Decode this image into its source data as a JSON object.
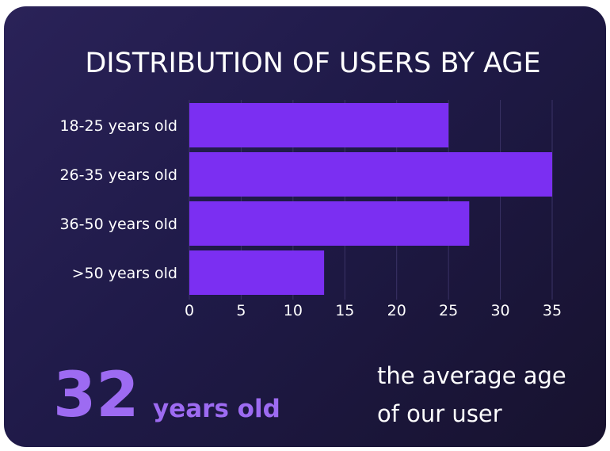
{
  "colors": {
    "bar": "#7b2ff2",
    "accent": "#9d6bf2",
    "text": "#ffffff",
    "grid": "#3a3366"
  },
  "highlight": {
    "value": "32",
    "unit": "years old",
    "caption_line1": "the average age",
    "caption_line2": "of our user"
  },
  "chart_data": {
    "type": "bar",
    "orientation": "horizontal",
    "title": "DISTRIBUTION OF USERS BY AGE",
    "categories": [
      "18-25 years old",
      "26-35 years old",
      "36-50 years old",
      ">50 years old"
    ],
    "values": [
      25,
      35,
      27,
      13
    ],
    "xlim": [
      0,
      35
    ],
    "xticks": [
      "0",
      "5",
      "10",
      "15",
      "20",
      "25",
      "30",
      "35"
    ],
    "grid": "vertical",
    "xlabel": "",
    "ylabel": ""
  }
}
